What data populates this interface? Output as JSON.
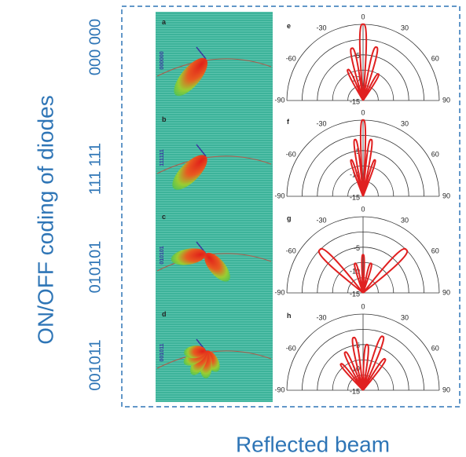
{
  "y_label": "ON/OFF coding of diodes",
  "x_label": "Reflected beam",
  "rows": [
    {
      "code": "000 000",
      "panel_letter": "a",
      "image_code": "000000",
      "plot_letter": "e"
    },
    {
      "code": "111 111",
      "panel_letter": "b",
      "image_code": "111111",
      "plot_letter": "f"
    },
    {
      "code": "010101",
      "panel_letter": "c",
      "image_code": "010101",
      "plot_letter": "g"
    },
    {
      "code": "001011",
      "panel_letter": "d",
      "image_code": "001011",
      "plot_letter": "h"
    }
  ],
  "polar_angle_labels": [
    "0",
    "30",
    "60",
    "90",
    "-30",
    "-60",
    "-90"
  ],
  "polar_radial_labels": [
    "-5",
    "-10",
    "-15"
  ]
}
